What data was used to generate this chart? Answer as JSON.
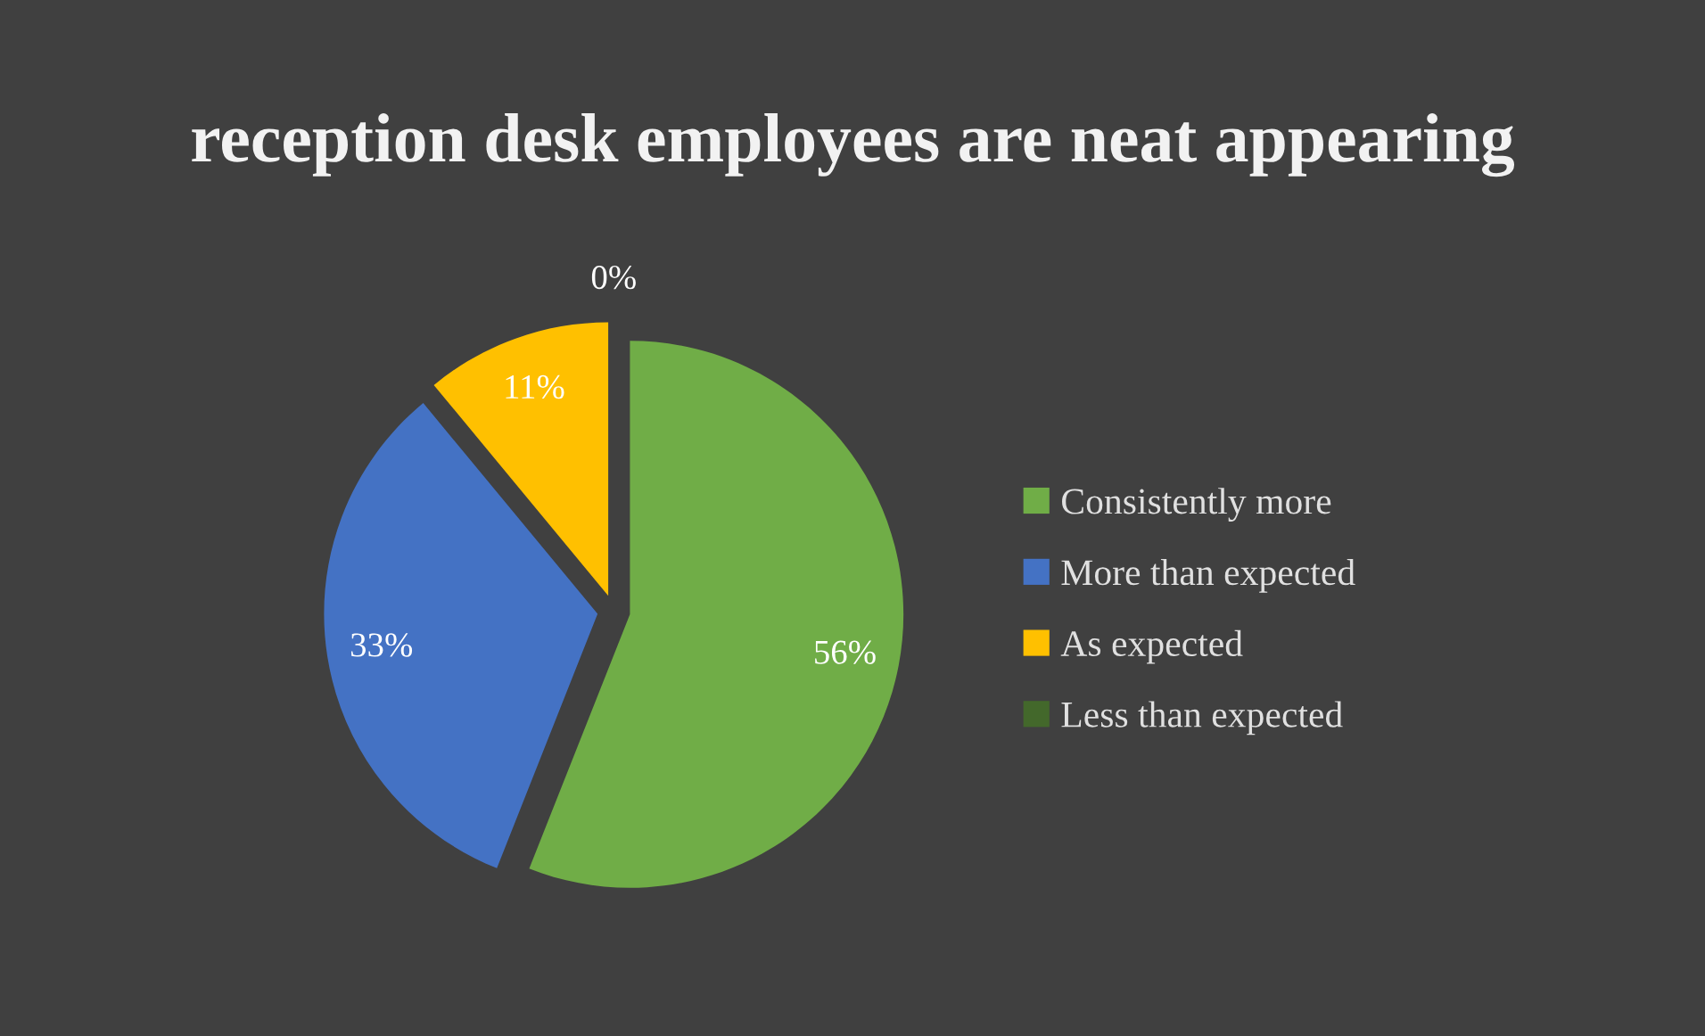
{
  "chart_data": {
    "type": "pie",
    "title": "reception desk employees are neat appearing",
    "categories": [
      "Consistently more",
      "More than expected",
      "As expected",
      "Less than expected"
    ],
    "values": [
      56,
      33,
      11,
      0
    ],
    "colors": [
      "#70ad47",
      "#4472c4",
      "#ffc000",
      "#43682b"
    ],
    "value_labels": [
      "56%",
      "33%",
      "11%",
      "0%"
    ],
    "legend": "right"
  }
}
